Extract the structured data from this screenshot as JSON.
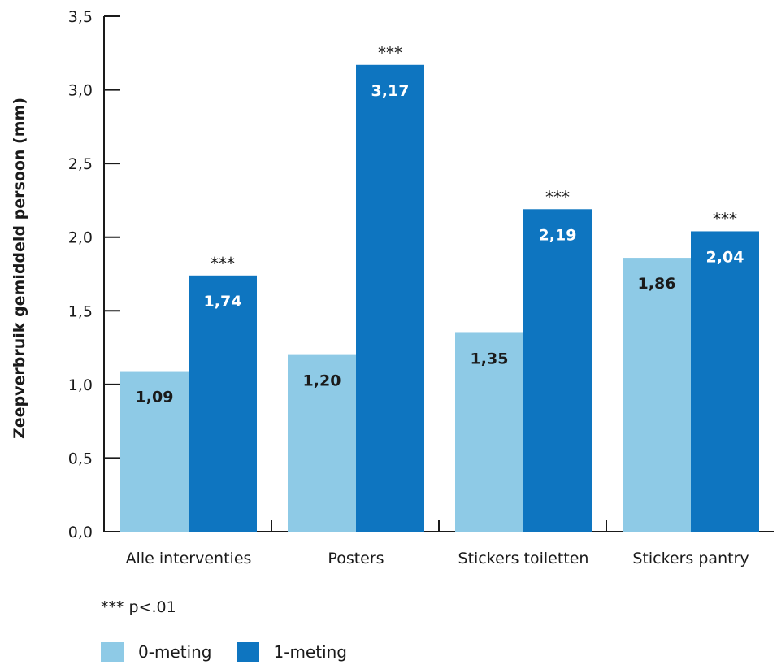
{
  "chart_data": {
    "type": "bar",
    "ylabel": "Zeepverbruik gemiddeld persoon (mm)",
    "ylim": [
      0,
      3.5
    ],
    "yticks": [
      "0,0",
      "0,5",
      "1,0",
      "1,5",
      "2,0",
      "2,5",
      "3,0",
      "3,5"
    ],
    "categories": [
      "Alle interventies",
      "Posters",
      "Stickers toiletten",
      "Stickers pantry"
    ],
    "series": [
      {
        "name": "0-meting",
        "color": "#8ecae6",
        "values": [
          1.09,
          1.2,
          1.35,
          1.86
        ],
        "labels": [
          "1,09",
          "1,20",
          "1,35",
          "1,86"
        ]
      },
      {
        "name": "1-meting",
        "color": "#0e75c0",
        "values": [
          1.74,
          3.17,
          2.19,
          2.04
        ],
        "labels": [
          "1,74",
          "3,17",
          "2,19",
          "2,04"
        ]
      }
    ],
    "significance_marks": [
      "***",
      "***",
      "***",
      "***"
    ],
    "note": "*** p<.01",
    "legend_position": "bottom-left"
  }
}
